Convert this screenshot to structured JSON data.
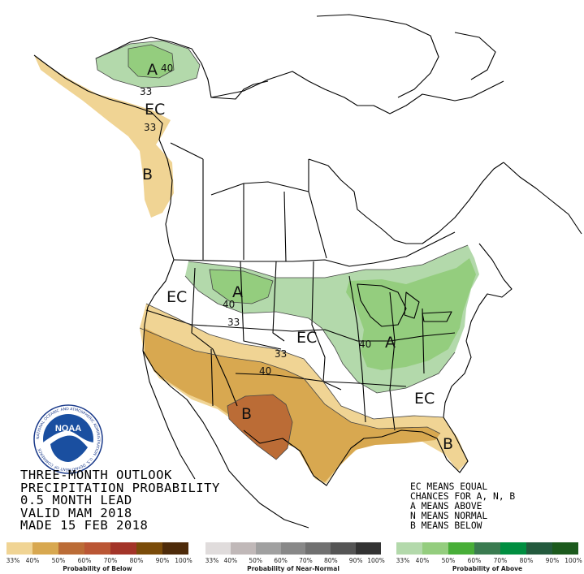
{
  "title_lines": [
    "THREE-MONTH OUTLOOK",
    "PRECIPITATION PROBABILITY",
    "0.5 MONTH LEAD",
    "VALID MAM 2018",
    "MADE 15 FEB 2018"
  ],
  "legend_lines": [
    "EC MEANS EQUAL",
    "CHANCES FOR A, N, B",
    "A MEANS ABOVE",
    "N MEANS NORMAL",
    "B MEANS BELOW"
  ],
  "logo_text": "NOAA",
  "logo_ring_text": "NATIONAL OCEANIC AND ATMOSPHERIC ADMINISTRATION · U.S. DEPARTMENT OF COMMERCE",
  "map_labels": {
    "alaska_above": "A",
    "alaska_40": "40",
    "alaska_33_north": "33",
    "alaska_ec": "EC",
    "alaska_33_south": "33",
    "alaska_below": "B",
    "west_ec": "EC",
    "north_above": "A",
    "north_40": "40",
    "north_33": "33",
    "central_ec": "EC",
    "south_33": "33",
    "south_40": "40",
    "south_below": "B",
    "east_40": "40",
    "east_above": "A",
    "southeast_ec": "EC",
    "florida_below": "B"
  },
  "colorbars": {
    "below": {
      "caption": "Probability of Below",
      "ticks": [
        "33%",
        "40%",
        "50%",
        "60%",
        "70%",
        "80%",
        "90%",
        "100%"
      ],
      "colors": [
        "#f0d494",
        "#d8a850",
        "#bb6c36",
        "#ba5634",
        "#a33428",
        "#7a4b09",
        "#4e2b0a"
      ]
    },
    "normal": {
      "caption": "Probability of Near-Normal",
      "ticks": [
        "33%",
        "40%",
        "50%",
        "60%",
        "70%",
        "80%",
        "90%",
        "100%"
      ],
      "colors": [
        "#e0dcdc",
        "#c0b8b8",
        "#a0a0a0",
        "#888888",
        "#707070",
        "#555555",
        "#333333"
      ]
    },
    "above": {
      "caption": "Probability of Above",
      "ticks": [
        "33%",
        "40%",
        "50%",
        "60%",
        "70%",
        "80%",
        "90%",
        "100%"
      ],
      "colors": [
        "#b3d9ab",
        "#94cd7e",
        "#48ae38",
        "#3a7b50",
        "#008e40",
        "#235a3d",
        "#1c5a1d"
      ]
    }
  }
}
